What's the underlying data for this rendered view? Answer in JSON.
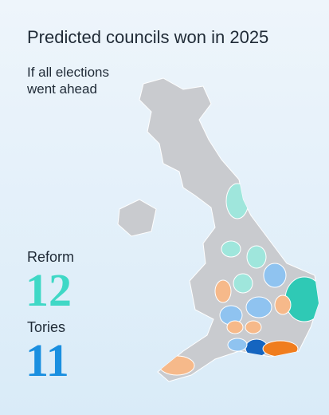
{
  "header": {
    "title": "Predicted councils won in 2025",
    "subtitle": "If all elections went ahead"
  },
  "results": [
    {
      "party": "Reform",
      "count": "12"
    },
    {
      "party": "Tories",
      "count": "11"
    }
  ]
}
